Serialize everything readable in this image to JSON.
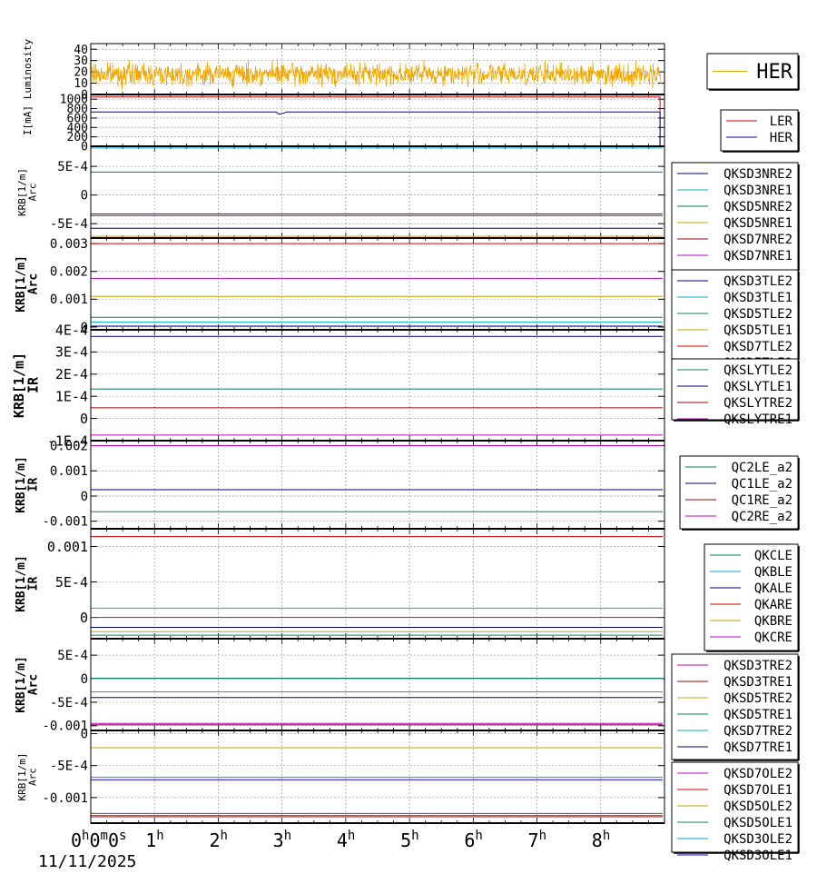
{
  "date_label": "11/11/2025",
  "x_axis": {
    "range_hours": [
      0,
      9
    ],
    "ticks": [
      {
        "value": 0,
        "label": "0h0m0s"
      },
      {
        "value": 1,
        "label": "1h"
      },
      {
        "value": 2,
        "label": "2h"
      },
      {
        "value": 3,
        "label": "3h"
      },
      {
        "value": 4,
        "label": "4h"
      },
      {
        "value": 5,
        "label": "5h"
      },
      {
        "value": 6,
        "label": "6h"
      },
      {
        "value": 7,
        "label": "7h"
      },
      {
        "value": 8,
        "label": "8h"
      }
    ]
  },
  "chart_data": [
    {
      "type": "line",
      "ylabel": [
        "Luminosity"
      ],
      "ylim": [
        0,
        45
      ],
      "yticks": [
        {
          "v": 0,
          "t": "0"
        },
        {
          "v": 10,
          "t": "10"
        },
        {
          "v": 20,
          "t": "20"
        },
        {
          "v": 30,
          "t": "30"
        },
        {
          "v": 40,
          "t": "40"
        }
      ],
      "grid": true,
      "legend_position": "right",
      "series": [
        {
          "name": "HER",
          "color": "#f0a800",
          "noise": {
            "mean": 18,
            "amp": 13,
            "seed": 7
          }
        }
      ]
    },
    {
      "type": "line",
      "ylabel": [
        "I[mA]"
      ],
      "ylim": [
        0,
        1100
      ],
      "yticks": [
        {
          "v": 0,
          "t": "0"
        },
        {
          "v": 200,
          "t": "200"
        },
        {
          "v": 400,
          "t": "400"
        },
        {
          "v": 600,
          "t": "600"
        },
        {
          "v": 800,
          "t": "800"
        },
        {
          "v": 1000,
          "t": "1000"
        }
      ],
      "grid": true,
      "legend_position": "right",
      "series": [
        {
          "name": "LER",
          "color": "#d00000",
          "level": 1045,
          "drop_at": 8.93
        },
        {
          "name": "HER",
          "color": "#0000aa",
          "level": 730,
          "dip_at": 2.95,
          "drop_at": 8.93
        }
      ]
    },
    {
      "type": "line",
      "ylabel": [
        "KRB[1/m]",
        "Arc"
      ],
      "ylim": [
        -0.00075,
        0.00085
      ],
      "yticks": [
        {
          "v": -0.0005,
          "t": "-5E-4"
        },
        {
          "v": 0,
          "t": "0"
        },
        {
          "v": 0.0005,
          "t": "5E-4"
        }
      ],
      "grid": true,
      "legend_position": "right",
      "series": [
        {
          "name": "QKSD3NRE2",
          "color": "#000080",
          "level": -0.00058
        },
        {
          "name": "QKSD3NRE1",
          "color": "#00b0c0",
          "level": 0.00082
        },
        {
          "name": "QKSD5NRE2",
          "color": "#008060",
          "level": 0.0004
        },
        {
          "name": "QKSD5NRE1",
          "color": "#c8a000",
          "level": -0.00072
        },
        {
          "name": "QKSD7NRE2",
          "color": "#a00000",
          "level": -0.00033
        },
        {
          "name": "QKSD7NRE1",
          "color": "#c000c0",
          "level": -0.00036
        }
      ]
    },
    {
      "type": "line",
      "ylabel": [
        "KRB[1/m]",
        "Arc"
      ],
      "ylim": [
        -0.0001,
        0.0032
      ],
      "yticks": [
        {
          "v": 0,
          "t": "0"
        },
        {
          "v": 0.001,
          "t": "0.001"
        },
        {
          "v": 0.002,
          "t": "0.002"
        },
        {
          "v": 0.003,
          "t": "0.003"
        }
      ],
      "grid": true,
      "legend_position": "right",
      "series": [
        {
          "name": "QKSD3TLE2",
          "color": "#000080",
          "level": 3e-05
        },
        {
          "name": "QKSD3TLE1",
          "color": "#00b0c0",
          "level": 0.00018
        },
        {
          "name": "QKSD5TLE2",
          "color": "#008060",
          "level": 0.00035
        },
        {
          "name": "QKSD5TLE1",
          "color": "#c8a000",
          "level": 0.0011
        },
        {
          "name": "QKSD7TLE2",
          "color": "#d00000",
          "level": 0.003
        },
        {
          "name": "QKSD7TLE1",
          "color": "#c000c0",
          "level": 0.00175
        }
      ]
    },
    {
      "type": "line",
      "ylabel": [
        "KRB[1/m]",
        "IR"
      ],
      "ylim": [
        -0.0001,
        0.0004
      ],
      "yticks": [
        {
          "v": -0.0001,
          "t": "-1E-4"
        },
        {
          "v": 0,
          "t": "0"
        },
        {
          "v": 0.0001,
          "t": "1E-4"
        },
        {
          "v": 0.0002,
          "t": "2E-4"
        },
        {
          "v": 0.0003,
          "t": "3E-4"
        },
        {
          "v": 0.0004,
          "t": "4E-4"
        }
      ],
      "grid": true,
      "legend_position": "right",
      "series": [
        {
          "name": "QKSLYTLE2",
          "color": "#008060",
          "level": 0.000133
        },
        {
          "name": "QKSLYTLE1",
          "color": "#000080",
          "level": 0.00037
        },
        {
          "name": "QKSLYTRE2",
          "color": "#a00000",
          "level": 4.8e-05
        },
        {
          "name": "QKSLYTRE1",
          "color": "#c000c0",
          "level": -7.5e-05
        }
      ]
    },
    {
      "type": "line",
      "ylabel": [
        "KRB[1/m]",
        "IR"
      ],
      "ylim": [
        -0.0013,
        0.0022
      ],
      "yticks": [
        {
          "v": -0.001,
          "t": "-0.001"
        },
        {
          "v": 0,
          "t": "0"
        },
        {
          "v": 0.001,
          "t": "0.001"
        },
        {
          "v": 0.002,
          "t": "0.002"
        }
      ],
      "grid": true,
      "legend_position": "right",
      "series": [
        {
          "name": "QC2LE_a2",
          "color": "#008060",
          "level": -0.00062
        },
        {
          "name": "QC1LE_a2",
          "color": "#000080",
          "level": 0.00025
        },
        {
          "name": "QC1RE_a2",
          "color": "#a00000",
          "level": 0.002
        },
        {
          "name": "QC2RE_a2",
          "color": "#c000c0",
          "level": 0.002
        }
      ]
    },
    {
      "type": "line",
      "ylabel": [
        "KRB[1/m]",
        "IR"
      ],
      "ylim": [
        -0.0003,
        0.00125
      ],
      "yticks": [
        {
          "v": 0,
          "t": "0"
        },
        {
          "v": 0.0005,
          "t": "5E-4"
        },
        {
          "v": 0.001,
          "t": "0.001"
        }
      ],
      "grid": true,
      "legend_position": "right",
      "series": [
        {
          "name": "QKCLE",
          "color": "#008060",
          "level": -0.00025
        },
        {
          "name": "QKBLE",
          "color": "#00b0c0",
          "level": 0.00013
        },
        {
          "name": "QKALE",
          "color": "#000080",
          "level": -0.00014
        },
        {
          "name": "QKARE",
          "color": "#d00000",
          "level": 0.00114
        },
        {
          "name": "QKBRE",
          "color": "#c8a000",
          "level": -0.0002
        },
        {
          "name": "QKCRE",
          "color": "#c000c0",
          "level": 0.0
        }
      ]
    },
    {
      "type": "line",
      "ylabel": [
        "KRB[1/m]",
        "Arc"
      ],
      "ylim": [
        -0.0011,
        0.00085
      ],
      "yticks": [
        {
          "v": -0.001,
          "t": "-0.001"
        },
        {
          "v": -0.0005,
          "t": "-5E-4"
        },
        {
          "v": 0,
          "t": "0"
        },
        {
          "v": 0.0005,
          "t": "5E-4"
        }
      ],
      "grid": true,
      "legend_position": "right",
      "series": [
        {
          "name": "QKSD3TRE2",
          "color": "#c000c0",
          "level": -0.00095
        },
        {
          "name": "QKSD3TRE1",
          "color": "#a00000",
          "level": -0.00098
        },
        {
          "name": "QKSD5TRE2",
          "color": "#c8a000",
          "level": 0.0
        },
        {
          "name": "QKSD5TRE1",
          "color": "#008060",
          "level": 1e-05
        },
        {
          "name": "QKSD7TRE2",
          "color": "#00b0c0",
          "level": -0.00028
        },
        {
          "name": "QKSD7TRE1",
          "color": "#000080",
          "level": -0.0004
        }
      ]
    },
    {
      "type": "line",
      "ylabel": [
        "KRB[1/m]",
        "Arc"
      ],
      "ylim": [
        -0.0014,
        5e-05
      ],
      "yticks": [
        {
          "v": -0.001,
          "t": "-0.001"
        },
        {
          "v": -0.0005,
          "t": "-5E-4"
        },
        {
          "v": 0,
          "t": "0"
        }
      ],
      "grid": true,
      "legend_position": "right",
      "series": [
        {
          "name": "QKSD7OLE2",
          "color": "#c000c0",
          "level": -0.00125
        },
        {
          "name": "QKSD7OLE1",
          "color": "#d00000",
          "level": -0.0013
        },
        {
          "name": "QKSD5OLE2",
          "color": "#c8a000",
          "level": -0.00022
        },
        {
          "name": "QKSD5OLE1",
          "color": "#008060",
          "level": -0.00128
        },
        {
          "name": "QKSD3OLE2",
          "color": "#00a0d0",
          "level": -0.00068
        },
        {
          "name": "QKSD3OLE1",
          "color": "#0000c0",
          "level": -0.00072
        }
      ]
    }
  ]
}
